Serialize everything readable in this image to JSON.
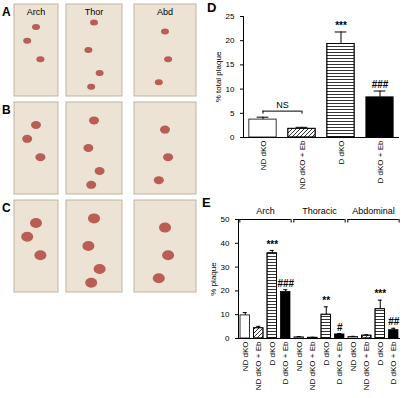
{
  "photo_panels": {
    "panels": [
      "A",
      "B",
      "C"
    ],
    "column_labels": [
      "Arch",
      "Thor",
      "Abd"
    ]
  },
  "chart_data": [
    {
      "type": "bar",
      "title": "D",
      "y_label": "% total plaque",
      "categories": [
        "ND dKO",
        "ND dKO + Eb",
        "D dKO",
        "D dKO + Eb"
      ],
      "values": [
        3.7,
        1.8,
        19.3,
        8.3
      ],
      "errors": [
        0.5,
        0.3,
        2.5,
        1.3
      ],
      "colors": [
        "#ffffff",
        "#ffffff",
        "#ffffff",
        "#000000"
      ],
      "ylim": [
        0,
        25
      ],
      "yticks": [
        0,
        5,
        10,
        15,
        20,
        25
      ],
      "annotations": [
        {
          "categories": [
            "ND dKO",
            "ND dKO + Eb"
          ],
          "text": "NS"
        },
        {
          "category": "D dKO",
          "text": "***"
        },
        {
          "category": "D dKO + Eb",
          "text": "###"
        }
      ]
    },
    {
      "type": "bar",
      "title": "E",
      "y_label": "% plaque",
      "group_labels": [
        "Arch",
        "Thoracic",
        "Abdominal"
      ],
      "categories": [
        "ND dKO",
        "ND dKO + Eb",
        "D dKO",
        "D dKO + Eb",
        "ND dKO",
        "ND dKO + Eb",
        "D dKO",
        "D dKO + Eb",
        "ND dKO",
        "ND dKO + Eb",
        "D dKO",
        "D dKO + Eb"
      ],
      "values": [
        9.7,
        4.3,
        35.8,
        19.5,
        0.5,
        0.3,
        10.0,
        1.7,
        0.6,
        1.2,
        12.3,
        3.5
      ],
      "errors": [
        1.2,
        0.8,
        1.2,
        1.0,
        0.3,
        0.2,
        3.3,
        0.4,
        0.3,
        0.4,
        3.8,
        0.8
      ],
      "colors": [
        "#ffffff",
        "#ffffff",
        "#ffffff",
        "#000000",
        "#ffffff",
        "#ffffff",
        "#ffffff",
        "#000000",
        "#ffffff",
        "#ffffff",
        "#ffffff",
        "#000000"
      ],
      "ylim": [
        0,
        50
      ],
      "yticks": [
        0,
        10,
        20,
        30,
        40,
        50
      ],
      "annotations": [
        {
          "group": "Arch",
          "category": "D dKO",
          "text": "***"
        },
        {
          "group": "Arch",
          "category": "D dKO + Eb",
          "text": "###"
        },
        {
          "group": "Thoracic",
          "category": "D dKO",
          "text": "**"
        },
        {
          "group": "Thoracic",
          "category": "D dKO + Eb",
          "text": "#"
        },
        {
          "group": "Abdominal",
          "category": "D dKO",
          "text": "***"
        },
        {
          "group": "Abdominal",
          "category": "D dKO + Eb",
          "text": "##"
        }
      ]
    }
  ]
}
